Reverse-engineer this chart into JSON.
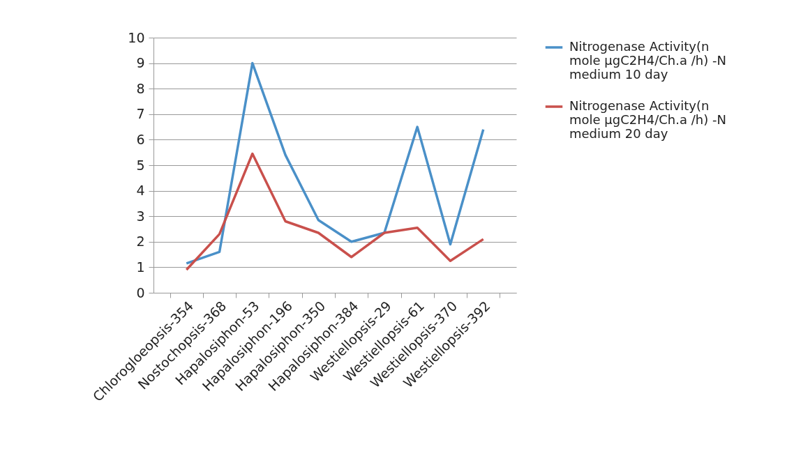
{
  "chart_data": {
    "type": "line",
    "categories": [
      "Chlorogloeopsis-354",
      "Nostochopsis-368",
      "Hapalosiphon-53",
      "Hapalosiphon-196",
      "Hapalosiphon-350",
      "Hapalosiphon-384",
      "Westiellopsis-29",
      "Westiellopsis-61",
      "Westiellopsis-370",
      "Westiellopsis-392"
    ],
    "series": [
      {
        "name": "Nitrogenase Activity(n mole µgC2H4/Ch.a /h) -N medium 10 day",
        "color": "#4a90c8",
        "values": [
          1.15,
          1.6,
          9.0,
          5.4,
          2.85,
          2.0,
          2.35,
          6.5,
          1.9,
          6.4
        ]
      },
      {
        "name": "Nitrogenase Activity(n mole µgC2H4/Ch.a /h) -N medium 20 day",
        "color": "#c9504c",
        "values": [
          0.9,
          2.3,
          5.45,
          2.8,
          2.35,
          1.4,
          2.35,
          2.55,
          1.25,
          2.1
        ]
      }
    ],
    "ylim": [
      0,
      10
    ],
    "yticks": [
      0,
      1,
      2,
      3,
      4,
      5,
      6,
      7,
      8,
      9,
      10
    ],
    "grid": "y",
    "legend": "right",
    "marker": "none",
    "line_style": "solid"
  }
}
